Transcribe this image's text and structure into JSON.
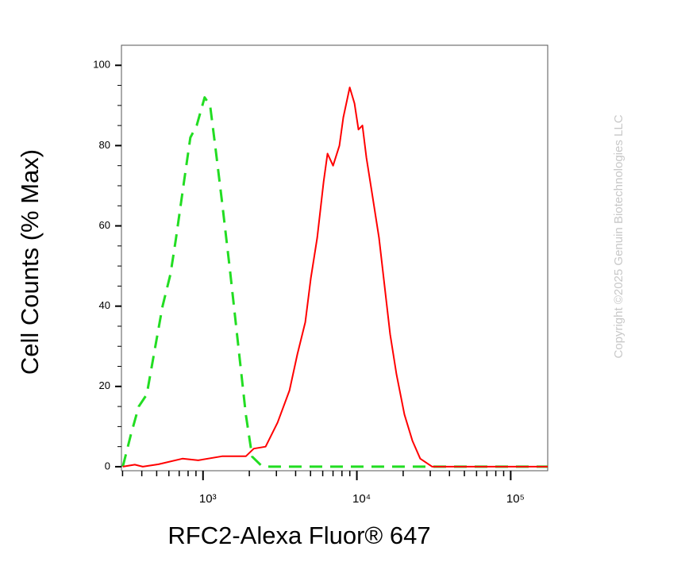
{
  "chart_data": {
    "type": "line",
    "xlabel": "RFC2-Alexa Fluor® 647",
    "ylabel": "Cell Counts (% Max)",
    "watermark": "Copyright ©2025 Genuin Biotechnologies LLC",
    "xscale": "log",
    "xlim": [
      295,
      174000
    ],
    "ylim": [
      -1,
      105
    ],
    "xticks": [
      {
        "value": 1000,
        "label": "10³"
      },
      {
        "value": 10000,
        "label": "10⁴"
      },
      {
        "value": 100000,
        "label": "10⁵"
      }
    ],
    "xminorticks": [
      300,
      400,
      500,
      600,
      700,
      800,
      900,
      2000,
      3000,
      4000,
      5000,
      6000,
      7000,
      8000,
      9000,
      20000,
      30000,
      40000,
      50000,
      60000,
      70000,
      80000,
      90000
    ],
    "yticks": [
      0,
      20,
      40,
      60,
      80,
      100
    ],
    "yminorticks": [
      5,
      10,
      15,
      25,
      30,
      35,
      45,
      50,
      55,
      65,
      70,
      75,
      85,
      90,
      95
    ],
    "series": [
      {
        "color": "#22dd22",
        "dash": true,
        "x": [
          301,
          340,
          382,
          431,
          485,
          546,
          615,
          668,
          752,
          827,
          910,
          1024,
          1112,
          1209,
          1329,
          1497,
          1686,
          1898,
          2088,
          2405,
          2710,
          5000,
          20000,
          100000,
          174000
        ],
        "values": [
          0,
          8,
          15,
          18,
          29,
          40,
          48,
          57,
          71,
          82,
          85,
          92,
          90,
          79,
          66,
          49,
          31,
          13,
          2.5,
          0.2,
          0,
          0,
          0,
          0,
          0
        ]
      },
      {
        "color": "#ff0000",
        "dash": false,
        "x": [
          301,
          360,
          406,
          514,
          735,
          931,
          1329,
          1898,
          2137,
          2552,
          3054,
          3648,
          4106,
          4624,
          5023,
          5522,
          6078,
          6447,
          7002,
          7703,
          8166,
          8990,
          9658,
          10240,
          10870,
          11530,
          12680,
          13940,
          15140,
          16450,
          18100,
          20380,
          22950,
          25820,
          30900,
          59300,
          174000
        ],
        "values": [
          0,
          0.5,
          0,
          0.6,
          2,
          1.6,
          2.6,
          2.6,
          4.5,
          5,
          11,
          19,
          28,
          36,
          47,
          57,
          71,
          78,
          75,
          80,
          87,
          94.5,
          90.5,
          84,
          85,
          77,
          67,
          57,
          45,
          33,
          23,
          13,
          6.5,
          2,
          0,
          0,
          0
        ]
      }
    ]
  }
}
